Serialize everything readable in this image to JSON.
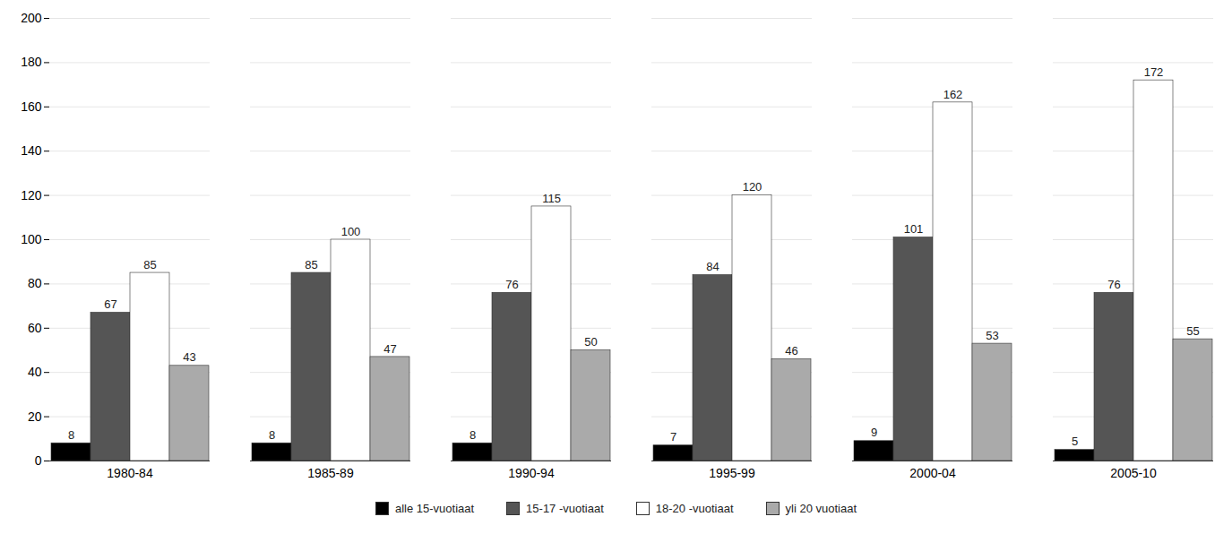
{
  "chart_data": {
    "type": "bar",
    "categories": [
      "1980-84",
      "1985-89",
      "1990-94",
      "1995-99",
      "2000-04",
      "2005-10"
    ],
    "series": [
      {
        "name": "alle 15-vuotiaat",
        "color": "#000000",
        "values": [
          8,
          8,
          8,
          7,
          9,
          5
        ]
      },
      {
        "name": "15-17 -vuotiaat",
        "color": "#555555",
        "values": [
          67,
          85,
          76,
          84,
          101,
          76
        ]
      },
      {
        "name": "18-20 -vuotiaat",
        "color": "#ffffff",
        "values": [
          85,
          100,
          115,
          120,
          162,
          172
        ]
      },
      {
        "name": "yli 20 vuotiaat",
        "color": "#aaaaaa",
        "values": [
          43,
          47,
          50,
          46,
          53,
          55
        ]
      }
    ],
    "ylim": [
      0,
      200
    ],
    "yticks": [
      0,
      20,
      40,
      60,
      80,
      100,
      120,
      140,
      160,
      180,
      200
    ],
    "grid": true,
    "data_labels": true,
    "legend": "bottom"
  }
}
